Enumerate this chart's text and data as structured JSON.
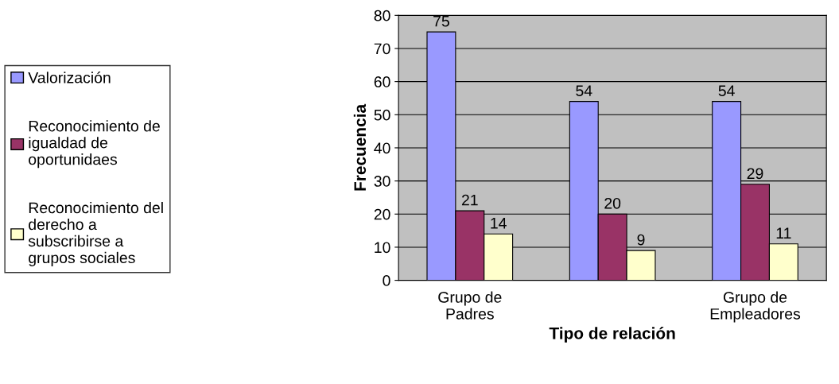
{
  "chart_data": {
    "type": "bar",
    "xlabel": "Tipo de relación",
    "ylabel": "Frecuencia",
    "categories": [
      "Grupo de\nPadres",
      null,
      "Grupo de\nEmpleadores"
    ],
    "series": [
      {
        "name": "Valorización",
        "color": "#9999ff",
        "values": [
          75,
          54,
          54
        ]
      },
      {
        "name": "Reconocimiento de\nigualdad de\noportunidaes",
        "color": "#993366",
        "values": [
          21,
          20,
          29
        ]
      },
      {
        "name": "Reconocimiento del\nderecho a\nsubscribirse a\ngrupos sociales",
        "color": "#ffffcc",
        "values": [
          14,
          9,
          11
        ]
      }
    ],
    "ylim": [
      0,
      80
    ],
    "yticks": [
      0,
      10,
      20,
      30,
      40,
      50,
      60,
      70,
      80
    ],
    "grid": "y",
    "legend": "left",
    "data_labels": true
  }
}
